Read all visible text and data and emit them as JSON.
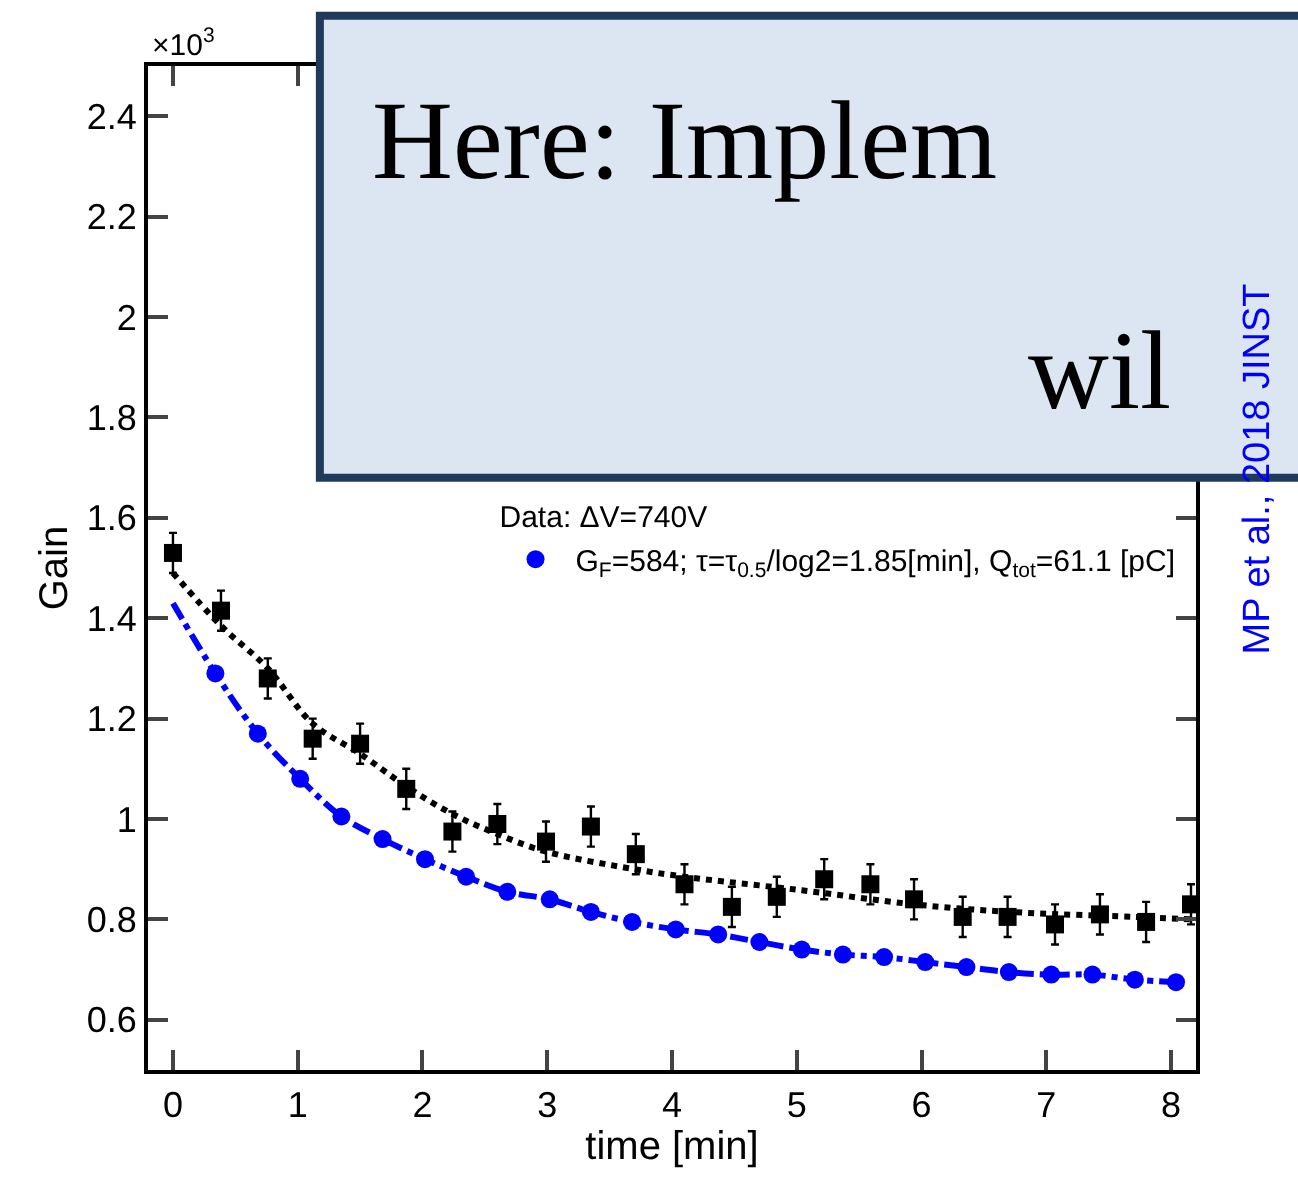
{
  "chart_data": {
    "type": "scatter",
    "ylabel": "Gain",
    "xlabel": "time [min]",
    "legend_title": "Data: ΔV=740V",
    "xlim": [
      -0.2,
      8.2
    ],
    "ylim": [
      0.5,
      2.5
    ],
    "xticks": [
      0,
      1,
      2,
      3,
      4,
      5,
      6,
      7,
      8
    ],
    "yticks": [
      0.6,
      0.8,
      1,
      1.2,
      1.4,
      1.6,
      1.8,
      2,
      2.2,
      2.4
    ],
    "grid": false,
    "legend": "right",
    "annotations": [
      "×10$^{3}$",
      "MP et al., 2018 JINST",
      "Here: Implem",
      "wil"
    ],
    "series": [
      {
        "color": "#000000",
        "marker": "square",
        "x": [
          0,
          0.385,
          0.76,
          1.12,
          1.5,
          1.87,
          2.24,
          2.6,
          2.99,
          3.35,
          3.71,
          4.1,
          4.48,
          4.84,
          5.22,
          5.59,
          5.94,
          6.33,
          6.69,
          7.07,
          7.43,
          7.8,
          8.16
        ],
        "values": [
          1.53,
          1.415,
          1.28,
          1.16,
          1.15,
          1.06,
          0.975,
          0.99,
          0.955,
          0.985,
          0.93,
          0.87,
          0.825,
          0.845,
          0.88,
          0.87,
          0.84,
          0.805,
          0.805,
          0.79,
          0.81,
          0.795,
          0.83
        ],
        "errors": [
          0.04,
          0.04,
          0.04,
          0.04,
          0.04,
          0.04,
          0.04,
          0.04,
          0.04,
          0.04,
          0.04,
          0.04,
          0.04,
          0.04,
          0.04,
          0.04,
          0.04,
          0.04,
          0.04,
          0.04,
          0.04,
          0.04,
          0.04
        ]
      },
      {
        "type": "line",
        "color": "#000000",
        "marker": "none",
        "line_style": "dotted",
        "x": [
          0,
          0.385,
          0.76,
          1.12,
          1.5,
          1.87,
          2.24,
          2.6,
          2.99,
          3.7,
          4.1,
          5.04,
          5.94,
          6.7,
          7.7,
          8.2
        ],
        "values": [
          1.49,
          1.385,
          1.3,
          1.19,
          1.13,
          1.065,
          1.01,
          0.97,
          0.935,
          0.9,
          0.885,
          0.858,
          0.83,
          0.815,
          0.805,
          0.8
        ]
      },
      {
        "type": "line",
        "color": "#0000ff",
        "line_style": "dashed",
        "x": [
          0,
          0.34,
          0.68,
          1.02,
          1.35,
          1.68,
          2.02,
          2.35,
          2.68,
          3.02,
          3.35,
          3.68,
          4.03,
          4.37,
          4.7,
          5.04,
          5.37,
          5.7,
          6.03,
          6.36,
          6.7,
          7.04,
          7.37,
          7.71,
          8.04
        ],
        "values": [
          1.43,
          1.29,
          1.17,
          1.08,
          1.005,
          0.96,
          0.92,
          0.885,
          0.855,
          0.84,
          0.815,
          0.795,
          0.78,
          0.77,
          0.755,
          0.74,
          0.73,
          0.725,
          0.715,
          0.705,
          0.695,
          0.69,
          0.69,
          0.68,
          0.675
        ]
      },
      {
        "name": "G$_{F}$=584; τ=τ$_{0.5}$/log2=1.85[min], Q$_{tot}$=61.1 [pC]",
        "color": "#0000ff",
        "marker": "circle",
        "x": [
          0.34,
          0.68,
          1.02,
          1.35,
          1.68,
          2.02,
          2.35,
          2.68,
          3.02,
          3.35,
          3.68,
          4.03,
          4.37,
          4.7,
          5.04,
          5.37,
          5.7,
          6.03,
          6.36,
          6.7,
          7.04,
          7.37,
          7.71,
          8.04
        ],
        "values": [
          1.29,
          1.17,
          1.08,
          1.005,
          0.96,
          0.92,
          0.885,
          0.855,
          0.84,
          0.815,
          0.795,
          0.78,
          0.77,
          0.755,
          0.74,
          0.73,
          0.725,
          0.715,
          0.705,
          0.695,
          0.69,
          0.69,
          0.68,
          0.675
        ]
      }
    ]
  }
}
